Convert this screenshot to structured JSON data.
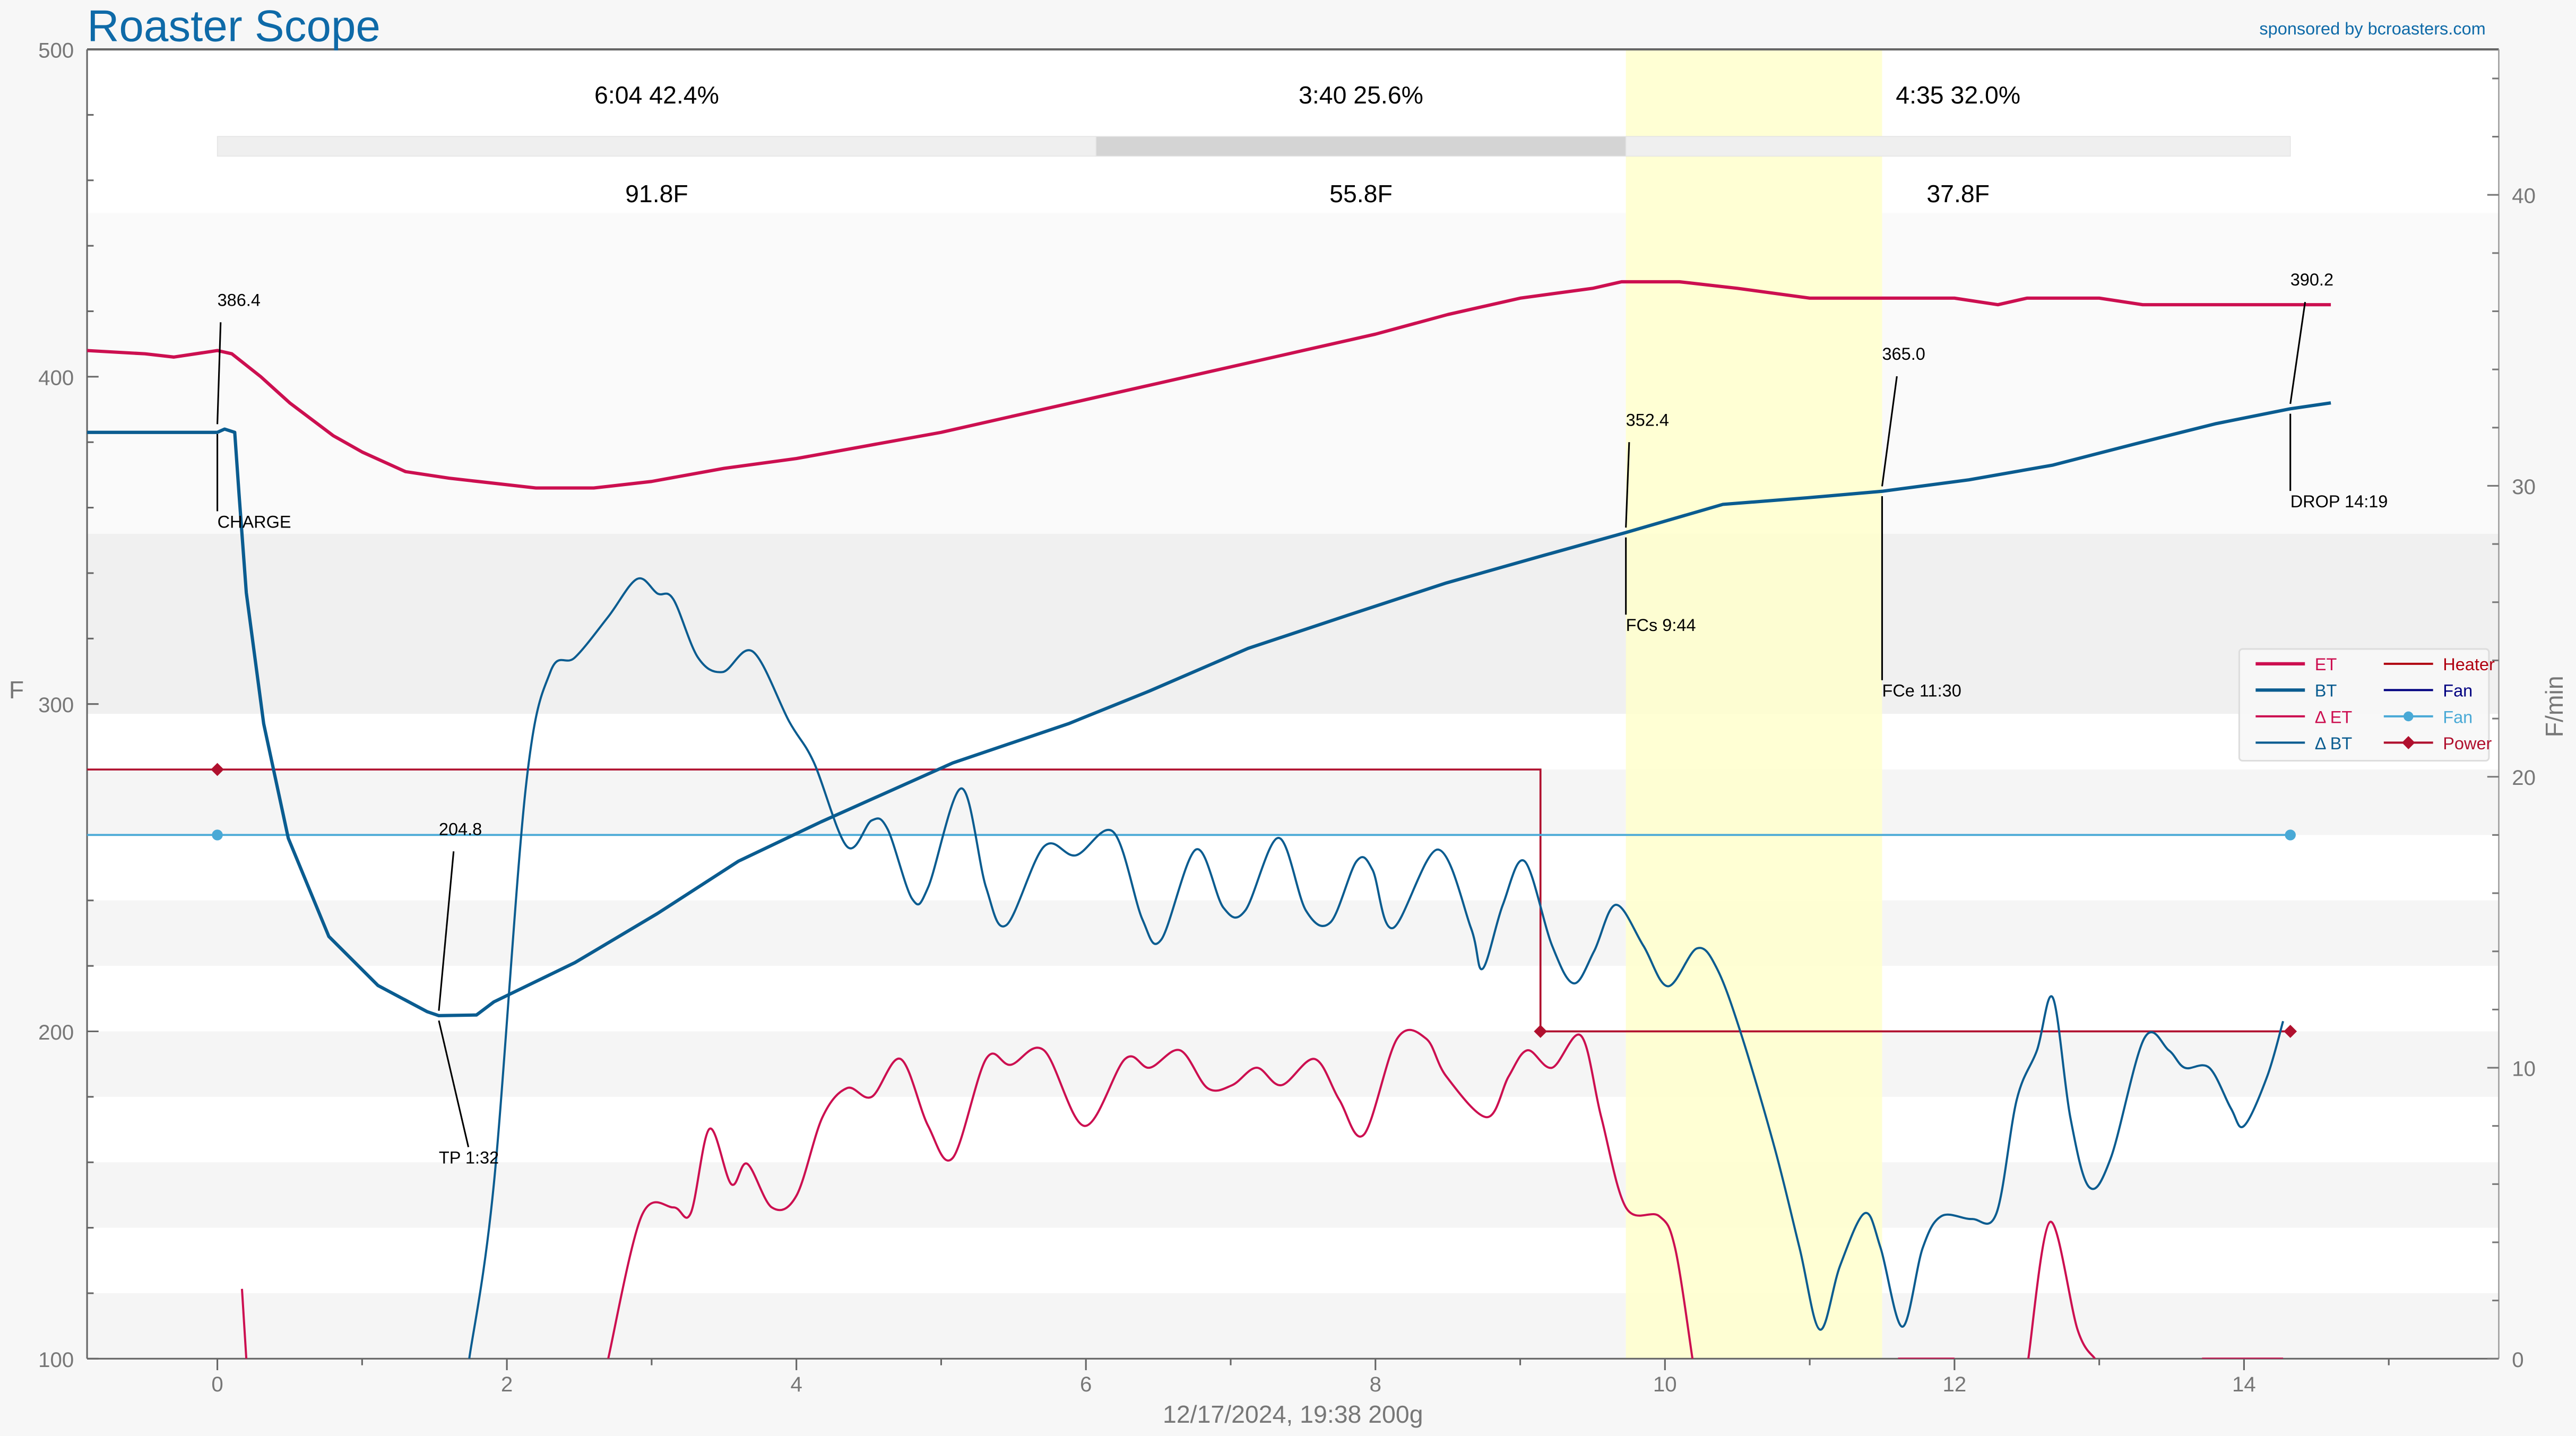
{
  "header": {
    "title": "Roaster Scope",
    "sponsor": "sponsored by bcroasters.com"
  },
  "footer": {
    "caption": "12/17/2024, 19:38   200g"
  },
  "colors": {
    "title": "#0e6aa8",
    "et": "#cc0f50",
    "bt": "#0a5c90",
    "heater": "#b00010",
    "fan_dark": "#000080",
    "fan": "#49a9d6",
    "power": "#b0102e",
    "highlight": "#ffffcc"
  },
  "phases": {
    "labels": [
      "6:04  42.4%",
      "3:40  25.6%",
      "4:35  32.0%"
    ],
    "deltas": [
      "91.8F",
      "55.8F",
      "37.8F"
    ],
    "boundaries_min": [
      0,
      6.07,
      9.73,
      14.32
    ]
  },
  "chart_data": {
    "type": "line",
    "title": "Roaster Scope",
    "xlabel": "12/17/2024, 19:38   200g",
    "ylabel": "F",
    "y2label": "F/min",
    "xlim": [
      -0.9,
      15.76
    ],
    "ylim": [
      100,
      500
    ],
    "y2lim": [
      0,
      45
    ],
    "xticks": [
      0,
      2,
      4,
      6,
      8,
      10,
      12,
      14
    ],
    "yticks": [
      100,
      200,
      300,
      400,
      500
    ],
    "y2ticks": [
      0,
      10,
      20,
      30,
      40
    ],
    "bands_F": [
      [
        352,
        450,
        "#fafafa"
      ],
      [
        297,
        352,
        "#f0f0f0"
      ],
      [
        260,
        280,
        "#f5f5f5"
      ],
      [
        220,
        240,
        "#f5f5f5"
      ],
      [
        180,
        200,
        "#f5f5f5"
      ],
      [
        140,
        160,
        "#f5f5f5"
      ],
      [
        100,
        120,
        "#f5f5f5"
      ]
    ],
    "highlight_range_min": [
      9.73,
      11.5
    ],
    "legend": {
      "placement": "right",
      "entries": [
        {
          "label": "ET",
          "color": "#cc0f50",
          "style": "thick"
        },
        {
          "label": "BT",
          "color": "#0a5c90",
          "style": "thick"
        },
        {
          "label": "Δ ET",
          "color": "#cc0f50",
          "style": "thin"
        },
        {
          "label": "Δ BT",
          "color": "#0a5c90",
          "style": "thin"
        },
        {
          "label": "Heater",
          "color": "#b00010",
          "style": "thin"
        },
        {
          "label": "Fan",
          "color": "#000080",
          "style": "thin"
        },
        {
          "label": "Fan",
          "color": "#49a9d6",
          "style": "dot"
        },
        {
          "label": "Power",
          "color": "#b0102e",
          "style": "diamond"
        }
      ]
    },
    "series": [
      {
        "name": "ET",
        "axis": "left",
        "color": "#cc0f50",
        "width": 2,
        "segments": [
          [
            [
              -0.9,
              408
            ],
            [
              -0.5,
              407
            ],
            [
              -0.3,
              406
            ],
            [
              0,
              408
            ],
            [
              0.1,
              407
            ],
            [
              0.3,
              400
            ],
            [
              0.5,
              392
            ],
            [
              0.8,
              382
            ],
            [
              1.0,
              377
            ],
            [
              1.3,
              371
            ],
            [
              1.6,
              369
            ],
            [
              1.8,
              368
            ],
            [
              2.2,
              366
            ],
            [
              2.6,
              366
            ],
            [
              3.0,
              368
            ],
            [
              3.5,
              372
            ],
            [
              4.0,
              375
            ],
            [
              4.5,
              379
            ],
            [
              5.0,
              383
            ],
            [
              5.5,
              388
            ],
            [
              6.0,
              393
            ],
            [
              6.5,
              398
            ],
            [
              7.0,
              403
            ],
            [
              7.5,
              408
            ],
            [
              8.0,
              413
            ],
            [
              8.5,
              419
            ],
            [
              9.0,
              424
            ],
            [
              9.5,
              427
            ],
            [
              9.7,
              429
            ],
            [
              10.1,
              429
            ],
            [
              10.5,
              427
            ],
            [
              11.0,
              424
            ],
            [
              11.5,
              424
            ],
            [
              12.0,
              424
            ],
            [
              12.3,
              422
            ],
            [
              12.5,
              424
            ],
            [
              13.0,
              424
            ],
            [
              13.3,
              422
            ],
            [
              14.6,
              422
            ]
          ]
        ]
      },
      {
        "name": "BT",
        "axis": "left",
        "color": "#0a5c90",
        "width": 2,
        "segments": [
          [
            [
              -0.9,
              383
            ],
            [
              0,
              383
            ],
            [
              0.05,
              384
            ],
            [
              0.12,
              383
            ],
            [
              0.15,
              364
            ],
            [
              0.2,
              334
            ],
            [
              0.32,
              294
            ],
            [
              0.49,
              259
            ],
            [
              0.77,
              229
            ],
            [
              1.11,
              214
            ],
            [
              1.45,
              206
            ],
            [
              1.53,
              204.8
            ],
            [
              1.79,
              205
            ],
            [
              1.91,
              209
            ],
            [
              2.47,
              221
            ],
            [
              3.04,
              236
            ],
            [
              3.6,
              252
            ],
            [
              4.17,
              264
            ],
            [
              5.08,
              282
            ],
            [
              5.88,
              294
            ],
            [
              6.44,
              304
            ],
            [
              7.12,
              317
            ],
            [
              7.8,
              327
            ],
            [
              8.49,
              337
            ],
            [
              9.17,
              345.5
            ],
            [
              9.73,
              352.4
            ],
            [
              10.4,
              361
            ],
            [
              10.98,
              363
            ],
            [
              11.5,
              365
            ],
            [
              12.1,
              368.5
            ],
            [
              12.68,
              373
            ],
            [
              13.25,
              379.5
            ],
            [
              13.8,
              385.6
            ],
            [
              14.32,
              390.2
            ],
            [
              14.6,
              392
            ]
          ]
        ]
      },
      {
        "name": "Δ ET",
        "axis": "right",
        "color": "#cc0f50",
        "width": 1.3,
        "segments": [
          [
            [
              0.17,
              2.4
            ],
            [
              0.2,
              0
            ]
          ],
          [
            [
              2.7,
              0
            ],
            [
              2.93,
              4.9
            ],
            [
              3.15,
              5.2
            ],
            [
              3.27,
              5.0
            ],
            [
              3.4,
              7.9
            ],
            [
              3.55,
              6.0
            ],
            [
              3.66,
              6.7
            ],
            [
              3.83,
              5.2
            ],
            [
              4.0,
              5.6
            ],
            [
              4.18,
              8.3
            ],
            [
              4.35,
              9.3
            ],
            [
              4.52,
              9.0
            ],
            [
              4.72,
              10.3
            ],
            [
              4.91,
              8.0
            ],
            [
              5.08,
              6.9
            ],
            [
              5.31,
              10.3
            ],
            [
              5.48,
              10.1
            ],
            [
              5.71,
              10.6
            ],
            [
              5.99,
              8.0
            ],
            [
              6.27,
              10.3
            ],
            [
              6.44,
              10.0
            ],
            [
              6.65,
              10.6
            ],
            [
              6.84,
              9.3
            ],
            [
              7.01,
              9.4
            ],
            [
              7.18,
              10.0
            ],
            [
              7.35,
              9.4
            ],
            [
              7.58,
              10.3
            ],
            [
              7.75,
              8.9
            ],
            [
              7.92,
              7.7
            ],
            [
              8.15,
              11.0
            ],
            [
              8.35,
              11.0
            ],
            [
              8.49,
              9.7
            ],
            [
              8.77,
              8.3
            ],
            [
              8.92,
              9.7
            ],
            [
              9.05,
              10.6
            ],
            [
              9.22,
              10.0
            ],
            [
              9.42,
              11.1
            ],
            [
              9.56,
              8.3
            ],
            [
              9.73,
              5.2
            ],
            [
              9.96,
              4.9
            ],
            [
              10.07,
              3.8
            ],
            [
              10.19,
              0
            ]
          ],
          [
            [
              11.61,
              0
            ],
            [
              12.0,
              0
            ]
          ],
          [
            [
              12.51,
              0
            ],
            [
              12.66,
              4.7
            ],
            [
              12.85,
              1.0
            ],
            [
              12.97,
              0
            ]
          ],
          [
            [
              13.71,
              0
            ],
            [
              14.27,
              0
            ]
          ]
        ]
      },
      {
        "name": "Δ BT",
        "axis": "right",
        "color": "#0a5c90",
        "width": 1.3,
        "segments": [
          [
            [
              1.74,
              0
            ],
            [
              1.91,
              6.0
            ],
            [
              2.13,
              19.6
            ],
            [
              2.3,
              23.6
            ],
            [
              2.47,
              24.1
            ],
            [
              2.7,
              25.5
            ],
            [
              2.9,
              26.8
            ],
            [
              3.04,
              26.3
            ],
            [
              3.15,
              26.1
            ],
            [
              3.32,
              24.1
            ],
            [
              3.49,
              23.6
            ],
            [
              3.7,
              24.3
            ],
            [
              3.95,
              21.9
            ],
            [
              4.12,
              20.5
            ],
            [
              4.35,
              17.6
            ],
            [
              4.52,
              18.5
            ],
            [
              4.63,
              18.2
            ],
            [
              4.8,
              15.8
            ],
            [
              4.91,
              16.2
            ],
            [
              5.14,
              19.6
            ],
            [
              5.31,
              16.2
            ],
            [
              5.45,
              14.9
            ],
            [
              5.71,
              17.6
            ],
            [
              5.93,
              17.3
            ],
            [
              6.19,
              18.1
            ],
            [
              6.39,
              15.1
            ],
            [
              6.52,
              14.4
            ],
            [
              6.76,
              17.5
            ],
            [
              6.95,
              15.5
            ],
            [
              7.1,
              15.4
            ],
            [
              7.33,
              17.9
            ],
            [
              7.52,
              15.4
            ],
            [
              7.69,
              15.0
            ],
            [
              7.87,
              17.1
            ],
            [
              7.98,
              16.8
            ],
            [
              8.12,
              14.8
            ],
            [
              8.43,
              17.5
            ],
            [
              8.66,
              14.8
            ],
            [
              8.74,
              13.4
            ],
            [
              8.88,
              15.6
            ],
            [
              9.03,
              17.1
            ],
            [
              9.22,
              14.2
            ],
            [
              9.37,
              12.9
            ],
            [
              9.51,
              14.0
            ],
            [
              9.66,
              15.6
            ],
            [
              9.85,
              14.2
            ],
            [
              10.02,
              12.8
            ],
            [
              10.22,
              14.1
            ],
            [
              10.36,
              13.4
            ],
            [
              10.53,
              11.1
            ],
            [
              10.76,
              7.2
            ],
            [
              10.93,
              3.8
            ],
            [
              11.07,
              1.0
            ],
            [
              11.21,
              3.2
            ],
            [
              11.38,
              5.0
            ],
            [
              11.49,
              3.8
            ],
            [
              11.64,
              1.1
            ],
            [
              11.78,
              3.8
            ],
            [
              11.91,
              4.9
            ],
            [
              12.12,
              4.8
            ],
            [
              12.29,
              5.0
            ],
            [
              12.43,
              8.9
            ],
            [
              12.57,
              10.6
            ],
            [
              12.68,
              12.4
            ],
            [
              12.8,
              8.3
            ],
            [
              12.93,
              5.9
            ],
            [
              13.08,
              6.9
            ],
            [
              13.31,
              11.0
            ],
            [
              13.48,
              10.6
            ],
            [
              13.59,
              10.0
            ],
            [
              13.76,
              10.0
            ],
            [
              13.91,
              8.6
            ],
            [
              14.0,
              8.0
            ],
            [
              14.16,
              9.7
            ],
            [
              14.27,
              11.6
            ]
          ]
        ]
      }
    ],
    "heater_steps": [
      [
        -0.9,
        280
      ],
      [
        9.14,
        280
      ],
      [
        9.14,
        200
      ],
      [
        14.32,
        200
      ]
    ],
    "power_markers": [
      [
        0,
        280
      ],
      [
        9.14,
        200
      ],
      [
        14.32,
        200
      ]
    ],
    "fan_line": [
      [
        -0.9,
        260
      ],
      [
        14.32,
        260
      ]
    ],
    "fan_markers": [
      [
        0,
        260
      ],
      [
        14.32,
        260
      ]
    ],
    "events": [
      {
        "name": "CHARGE",
        "t": 0,
        "value_text": "386.4",
        "label": "CHARGE",
        "y": 384
      },
      {
        "name": "TP",
        "t": 1.53,
        "value_text": "204.8",
        "label": "TP 1:32",
        "y": 204.8
      },
      {
        "name": "FCs",
        "t": 9.73,
        "value_text": "352.4",
        "label": "FCs 9:44",
        "y": 352.4
      },
      {
        "name": "FCe",
        "t": 11.5,
        "value_text": "365.0",
        "label": "FCe 11:30",
        "y": 365.0
      },
      {
        "name": "DROP",
        "t": 14.32,
        "value_text": "390.2",
        "label": "DROP 14:19",
        "y": 390.2
      }
    ]
  }
}
